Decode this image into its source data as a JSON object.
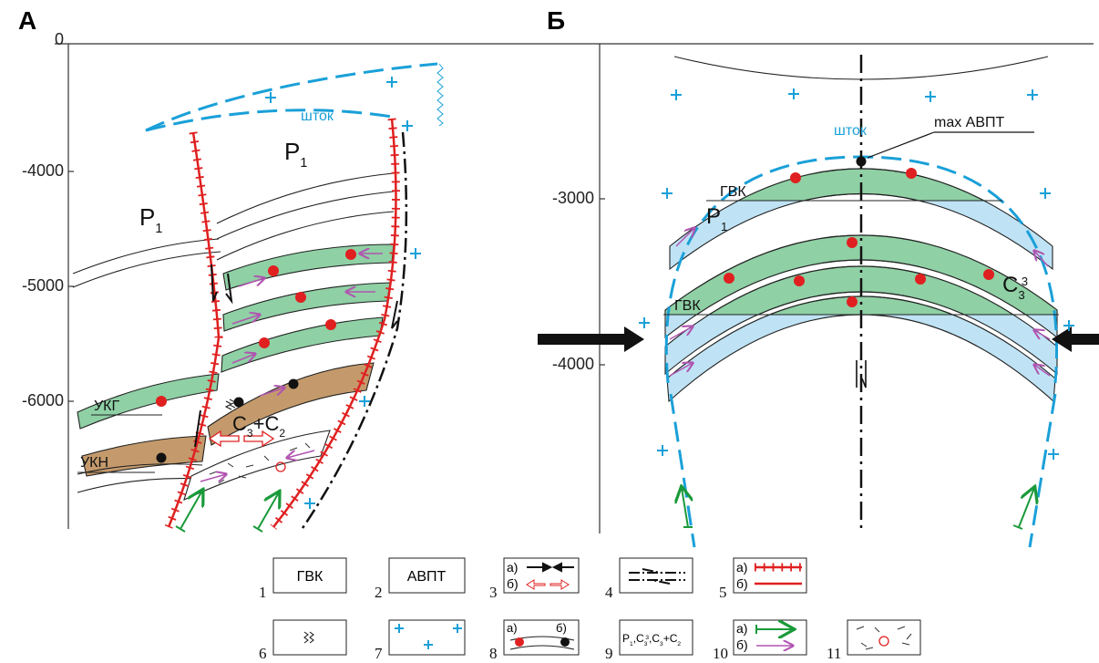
{
  "panel_a": {
    "letter": "А",
    "depths": [
      "0",
      "-4000",
      "-5000",
      "-6000"
    ],
    "stock": "шток",
    "p1_upper": {
      "base": "P",
      "sub": "1"
    },
    "p1_lower": {
      "base": "P",
      "sub": "1"
    },
    "ukg": "УКГ",
    "ukn": "УКН",
    "c3c2": [
      {
        "base": "C",
        "sub": "3"
      },
      {
        "base": "+C",
        "sub": "2"
      }
    ]
  },
  "panel_b": {
    "letter": "Б",
    "depths": [
      "-3000",
      "-4000"
    ],
    "stock": "шток",
    "max_label": "max АВПТ",
    "gvk_top": "ГВК",
    "gvk_bottom": "ГВК",
    "p1": {
      "base": "P",
      "sub": "1"
    },
    "c33": {
      "base": "C",
      "sub": "3",
      "sup": "3"
    }
  },
  "legend": {
    "items": [
      {
        "number": "1",
        "text": "ГВК"
      },
      {
        "number": "2",
        "text": "АВПТ"
      },
      {
        "number": "3",
        "a": "а)",
        "b": "б)"
      },
      {
        "number": "4"
      },
      {
        "number": "5",
        "a": "а)",
        "b": "б)"
      },
      {
        "number": "6"
      },
      {
        "number": "7"
      },
      {
        "number": "8",
        "a": "а)",
        "b": "б)"
      },
      {
        "number": "9",
        "parts": [
          {
            "base": "P",
            "sub": "1"
          },
          {
            "base": ",C",
            "sub": "3",
            "sup": "3"
          },
          {
            "base": ",C",
            "sub": "3"
          },
          {
            "base": "+C",
            "sub": "2"
          }
        ]
      },
      {
        "number": "10",
        "a": "а)",
        "b": "б)"
      },
      {
        "number": "11"
      }
    ]
  }
}
